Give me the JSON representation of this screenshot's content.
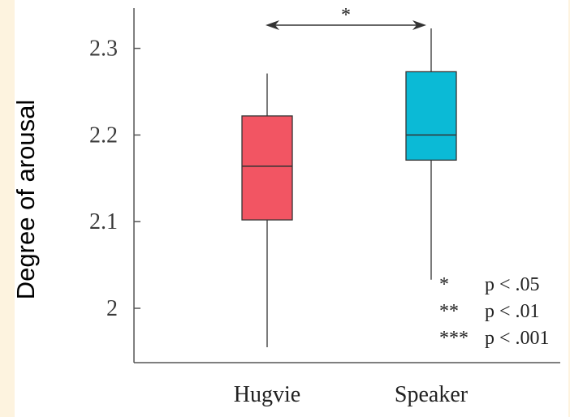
{
  "chart_data": {
    "type": "box",
    "ylabel": "Degree of arousal",
    "xlabel": "",
    "ylim": [
      1.95,
      2.34
    ],
    "yticks": [
      2,
      2.1,
      2.2,
      2.3
    ],
    "ytick_labels": [
      "2",
      "2.1",
      "2.2",
      "2.3"
    ],
    "categories": [
      "Hugvie",
      "Speaker"
    ],
    "boxes": [
      {
        "name": "Hugvie",
        "color": "#f25563",
        "whisker_low": 1.955,
        "q1": 2.102,
        "median": 2.164,
        "q3": 2.222,
        "whisker_high": 2.271
      },
      {
        "name": "Speaker",
        "color": "#0bbad6",
        "whisker_low": 2.033,
        "q1": 2.171,
        "median": 2.2,
        "q3": 2.273,
        "whisker_high": 2.323
      }
    ],
    "comparison": {
      "between": [
        "Hugvie",
        "Speaker"
      ],
      "marker": "*"
    },
    "significance_legend": [
      {
        "stars": "*",
        "text": "p < .05"
      },
      {
        "stars": "**",
        "text": "p < .01"
      },
      {
        "stars": "***",
        "text": "p < .001"
      }
    ]
  }
}
